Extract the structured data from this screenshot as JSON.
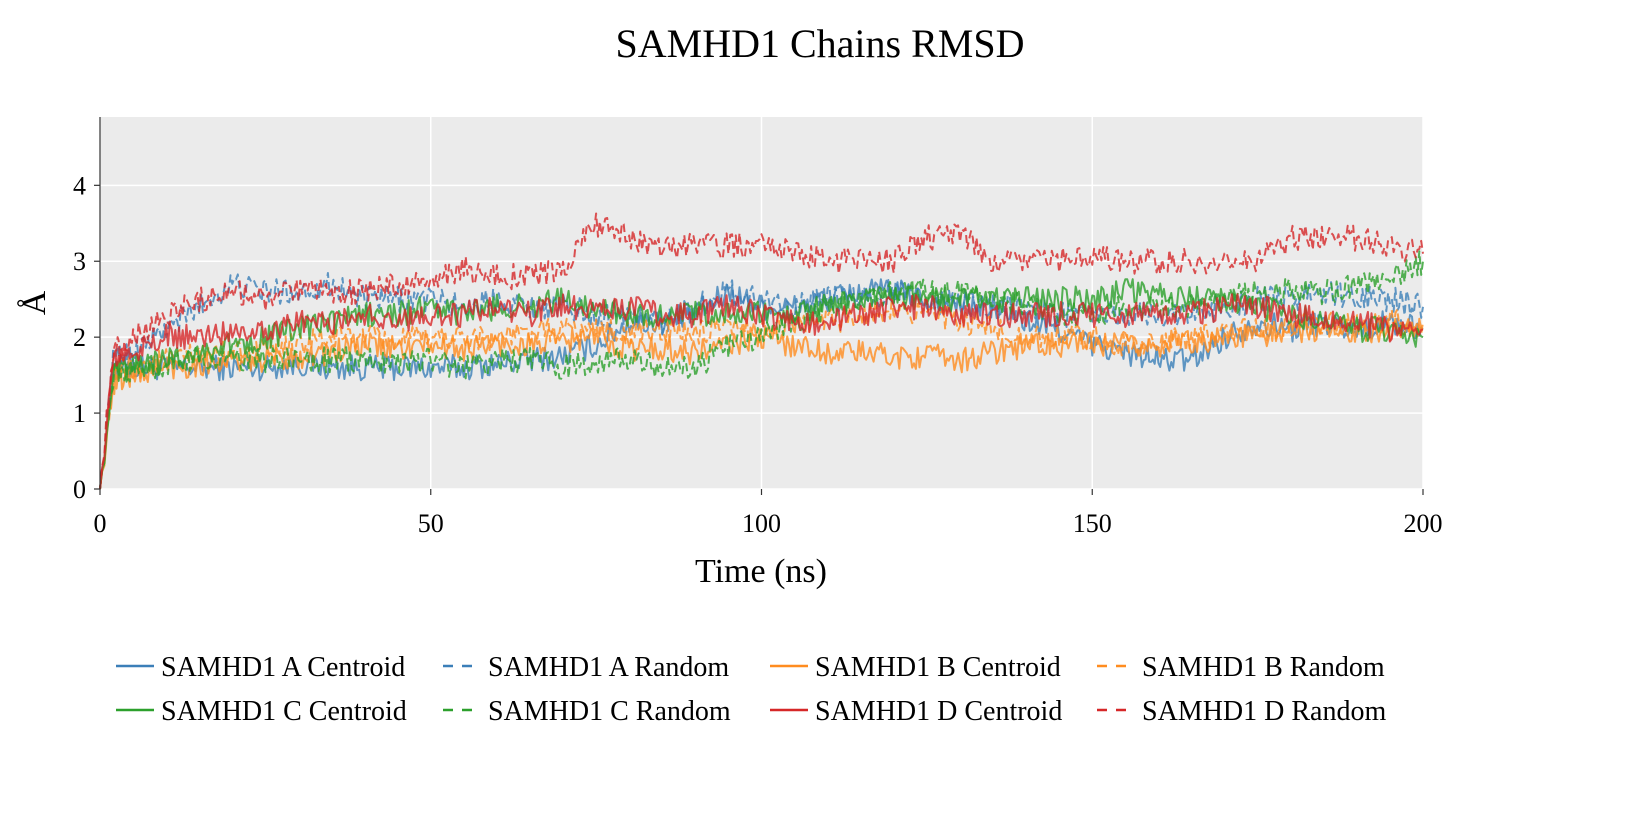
{
  "chart_data": {
    "type": "line",
    "title": "SAMHD1 Chains RMSD",
    "xlabel": "Time (ns)",
    "ylabel": "Å",
    "xlim": [
      0,
      200
    ],
    "ylim": [
      0,
      4.9
    ],
    "x_ticks": [
      0,
      50,
      100,
      150,
      200
    ],
    "y_ticks": [
      0,
      1,
      2,
      3,
      4
    ],
    "grid": true,
    "legend_position": "bottom",
    "series": [
      {
        "name": "SAMHD1 A Centroid",
        "color": "#3b7fb8",
        "dash": "solid",
        "x": [
          0,
          2,
          5,
          10,
          15,
          20,
          25,
          30,
          35,
          40,
          45,
          50,
          55,
          60,
          65,
          70,
          75,
          80,
          85,
          90,
          95,
          100,
          105,
          110,
          115,
          120,
          125,
          130,
          135,
          140,
          145,
          150,
          155,
          160,
          165,
          170,
          175,
          180,
          185,
          190,
          195,
          200
        ],
        "y": [
          0,
          1.6,
          1.6,
          1.6,
          1.6,
          1.6,
          1.6,
          1.65,
          1.6,
          1.6,
          1.6,
          1.6,
          1.6,
          1.65,
          1.7,
          1.75,
          1.9,
          2.2,
          2.2,
          2.3,
          2.6,
          2.4,
          2.4,
          2.5,
          2.6,
          2.6,
          2.5,
          2.4,
          2.4,
          2.2,
          2.1,
          1.9,
          1.8,
          1.7,
          1.7,
          2.0,
          2.2,
          2.1,
          2.2,
          2.1,
          2.2,
          2.1
        ]
      },
      {
        "name": "SAMHD1 A Random",
        "color": "#3b7fb8",
        "dash": "dashed",
        "x": [
          0,
          2,
          5,
          10,
          15,
          20,
          25,
          30,
          35,
          40,
          45,
          50,
          55,
          60,
          65,
          70,
          75,
          80,
          85,
          90,
          95,
          100,
          105,
          110,
          115,
          120,
          125,
          130,
          135,
          140,
          145,
          150,
          155,
          160,
          165,
          170,
          175,
          180,
          185,
          190,
          195,
          200
        ],
        "y": [
          0,
          1.7,
          1.8,
          2.1,
          2.4,
          2.7,
          2.6,
          2.6,
          2.7,
          2.5,
          2.5,
          2.5,
          2.4,
          2.5,
          2.4,
          2.4,
          2.3,
          2.3,
          2.2,
          2.4,
          2.6,
          2.5,
          2.4,
          2.5,
          2.5,
          2.6,
          2.5,
          2.5,
          2.4,
          2.4,
          2.3,
          2.3,
          2.3,
          2.3,
          2.3,
          2.4,
          2.5,
          2.5,
          2.6,
          2.5,
          2.5,
          2.4
        ]
      },
      {
        "name": "SAMHD1 B Centroid",
        "color": "#ff8c1f",
        "dash": "solid",
        "x": [
          0,
          2,
          5,
          10,
          15,
          20,
          25,
          30,
          35,
          40,
          45,
          50,
          55,
          60,
          65,
          70,
          75,
          80,
          85,
          90,
          95,
          100,
          105,
          110,
          115,
          120,
          125,
          130,
          135,
          140,
          145,
          150,
          155,
          160,
          165,
          170,
          175,
          180,
          185,
          190,
          195,
          200
        ],
        "y": [
          0,
          1.4,
          1.5,
          1.6,
          1.65,
          1.7,
          1.7,
          1.75,
          1.8,
          1.9,
          1.85,
          1.9,
          1.85,
          1.9,
          1.9,
          1.95,
          2.0,
          1.85,
          1.85,
          1.8,
          1.9,
          2.0,
          1.9,
          1.8,
          1.8,
          1.75,
          1.75,
          1.7,
          1.8,
          1.9,
          1.9,
          1.9,
          1.9,
          1.9,
          1.95,
          2.0,
          2.0,
          2.1,
          2.1,
          2.1,
          2.1,
          2.1
        ]
      },
      {
        "name": "SAMHD1 B Random",
        "color": "#ff8c1f",
        "dash": "dashed",
        "x": [
          0,
          2,
          5,
          10,
          15,
          20,
          25,
          30,
          35,
          40,
          45,
          50,
          55,
          60,
          65,
          70,
          75,
          80,
          85,
          90,
          95,
          100,
          105,
          110,
          115,
          120,
          125,
          130,
          135,
          140,
          145,
          150,
          155,
          160,
          165,
          170,
          175,
          180,
          185,
          190,
          195,
          200
        ],
        "y": [
          0,
          1.5,
          1.6,
          1.7,
          1.75,
          1.8,
          1.8,
          1.9,
          2.0,
          2.0,
          1.95,
          2.0,
          2.0,
          2.0,
          2.05,
          2.1,
          2.1,
          2.05,
          2.1,
          2.05,
          2.1,
          2.1,
          2.15,
          2.2,
          2.3,
          2.4,
          2.3,
          2.2,
          2.1,
          2.0,
          2.0,
          2.0,
          1.9,
          1.9,
          2.0,
          2.05,
          2.1,
          2.15,
          2.2,
          2.2,
          2.2,
          2.2
        ]
      },
      {
        "name": "SAMHD1 C Centroid",
        "color": "#2ca02c",
        "dash": "solid",
        "x": [
          0,
          2,
          5,
          10,
          15,
          20,
          25,
          30,
          35,
          40,
          45,
          50,
          55,
          60,
          65,
          70,
          75,
          80,
          85,
          90,
          95,
          100,
          105,
          110,
          115,
          120,
          125,
          130,
          135,
          140,
          145,
          150,
          155,
          160,
          165,
          170,
          175,
          180,
          185,
          190,
          195,
          200
        ],
        "y": [
          0,
          1.5,
          1.6,
          1.7,
          1.8,
          1.9,
          2.0,
          2.1,
          2.2,
          2.3,
          2.3,
          2.4,
          2.3,
          2.4,
          2.4,
          2.5,
          2.4,
          2.3,
          2.3,
          2.3,
          2.3,
          2.3,
          2.3,
          2.4,
          2.5,
          2.5,
          2.5,
          2.5,
          2.5,
          2.5,
          2.5,
          2.5,
          2.6,
          2.6,
          2.5,
          2.5,
          2.4,
          2.3,
          2.2,
          2.1,
          2.1,
          2.0
        ]
      },
      {
        "name": "SAMHD1 C Random",
        "color": "#2ca02c",
        "dash": "dashed",
        "x": [
          0,
          2,
          5,
          10,
          15,
          20,
          25,
          30,
          35,
          40,
          45,
          50,
          55,
          60,
          65,
          70,
          75,
          80,
          85,
          90,
          95,
          100,
          105,
          110,
          115,
          120,
          125,
          130,
          135,
          140,
          145,
          150,
          155,
          160,
          165,
          170,
          175,
          180,
          185,
          190,
          195,
          200
        ],
        "y": [
          0,
          1.5,
          1.6,
          1.6,
          1.7,
          1.7,
          1.7,
          1.7,
          1.7,
          1.7,
          1.7,
          1.7,
          1.6,
          1.7,
          1.7,
          1.6,
          1.7,
          1.7,
          1.6,
          1.6,
          1.9,
          2.0,
          2.2,
          2.4,
          2.5,
          2.6,
          2.6,
          2.6,
          2.5,
          2.4,
          2.3,
          2.3,
          2.4,
          2.4,
          2.4,
          2.5,
          2.6,
          2.6,
          2.6,
          2.7,
          2.8,
          3.0
        ]
      },
      {
        "name": "SAMHD1 D Centroid",
        "color": "#d62728",
        "dash": "solid",
        "x": [
          0,
          2,
          5,
          10,
          15,
          20,
          25,
          30,
          35,
          40,
          45,
          50,
          55,
          60,
          65,
          70,
          75,
          80,
          85,
          90,
          95,
          100,
          105,
          110,
          115,
          120,
          125,
          130,
          135,
          140,
          145,
          150,
          155,
          160,
          165,
          170,
          175,
          180,
          185,
          190,
          195,
          200
        ],
        "y": [
          0,
          1.7,
          1.8,
          2.0,
          2.0,
          2.1,
          2.1,
          2.2,
          2.2,
          2.3,
          2.2,
          2.3,
          2.3,
          2.4,
          2.3,
          2.4,
          2.4,
          2.4,
          2.3,
          2.3,
          2.4,
          2.3,
          2.2,
          2.2,
          2.3,
          2.4,
          2.4,
          2.3,
          2.3,
          2.3,
          2.3,
          2.3,
          2.3,
          2.3,
          2.3,
          2.4,
          2.4,
          2.3,
          2.2,
          2.2,
          2.1,
          2.1
        ]
      },
      {
        "name": "SAMHD1 D Random",
        "color": "#d62728",
        "dash": "dashed",
        "x": [
          0,
          2,
          5,
          10,
          15,
          20,
          25,
          30,
          35,
          40,
          45,
          50,
          55,
          60,
          65,
          70,
          75,
          80,
          85,
          90,
          95,
          100,
          105,
          110,
          115,
          120,
          125,
          130,
          135,
          140,
          145,
          150,
          155,
          160,
          165,
          170,
          175,
          180,
          185,
          190,
          195,
          200
        ],
        "y": [
          0,
          1.8,
          2.0,
          2.3,
          2.5,
          2.6,
          2.5,
          2.6,
          2.6,
          2.6,
          2.7,
          2.7,
          2.9,
          2.8,
          2.8,
          2.9,
          3.5,
          3.3,
          3.2,
          3.2,
          3.2,
          3.2,
          3.1,
          3.0,
          3.0,
          3.0,
          3.3,
          3.4,
          3.0,
          3.0,
          3.0,
          3.1,
          3.0,
          3.0,
          3.0,
          3.0,
          3.0,
          3.3,
          3.3,
          3.3,
          3.2,
          3.1
        ]
      }
    ]
  }
}
